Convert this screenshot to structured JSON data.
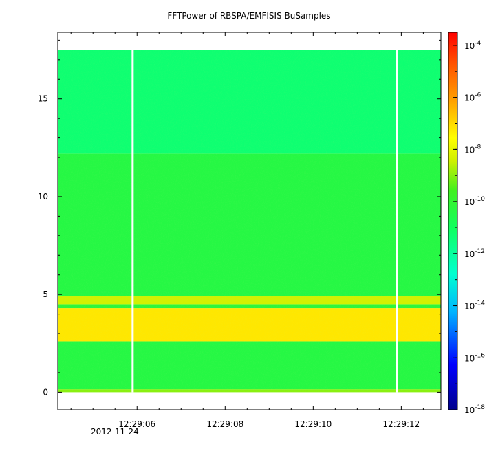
{
  "title": "FFTPower of RBSPA/EMFISIS  BuSamples",
  "chart_data": {
    "type": "heatmap",
    "title": "FFTPower of RBSPA/EMFISIS  BuSamples",
    "xlabel": "",
    "ylabel": "",
    "x_date": "2012-11-24",
    "x_ticks": [
      "12:29:06",
      "12:29:08",
      "12:29:10",
      "12:29:12"
    ],
    "x_tick_seconds": [
      6,
      8,
      10,
      12
    ],
    "x_range_seconds": [
      4.2,
      12.9
    ],
    "y_ticks": [
      0,
      5,
      10,
      15
    ],
    "ylim": [
      -0.9,
      18.4
    ],
    "data_y_range": [
      0,
      17.5
    ],
    "colorbar": {
      "scale": "log",
      "range_exponent": [
        -18,
        -3.5
      ],
      "tick_base": "10",
      "tick_exponents": [
        "-4",
        "-6",
        "-8",
        "-10",
        "-12",
        "-14",
        "-16",
        "-18"
      ]
    },
    "gaps_seconds": [
      5.9,
      11.9
    ],
    "bands": [
      {
        "y_range": [
          0,
          0.15
        ],
        "level_exponent": -9
      },
      {
        "y_range": [
          0.15,
          2.6
        ],
        "level_exponent": -10.4
      },
      {
        "y_range": [
          2.6,
          4.3
        ],
        "level_exponent": -7.2
      },
      {
        "y_range": [
          4.3,
          4.5
        ],
        "level_exponent": -10.2
      },
      {
        "y_range": [
          4.5,
          4.9
        ],
        "level_exponent": -8.4
      },
      {
        "y_range": [
          4.9,
          12.2
        ],
        "level_exponent": -10.4
      },
      {
        "y_range": [
          12.2,
          17.5
        ],
        "level_exponent": -11.3
      }
    ]
  }
}
